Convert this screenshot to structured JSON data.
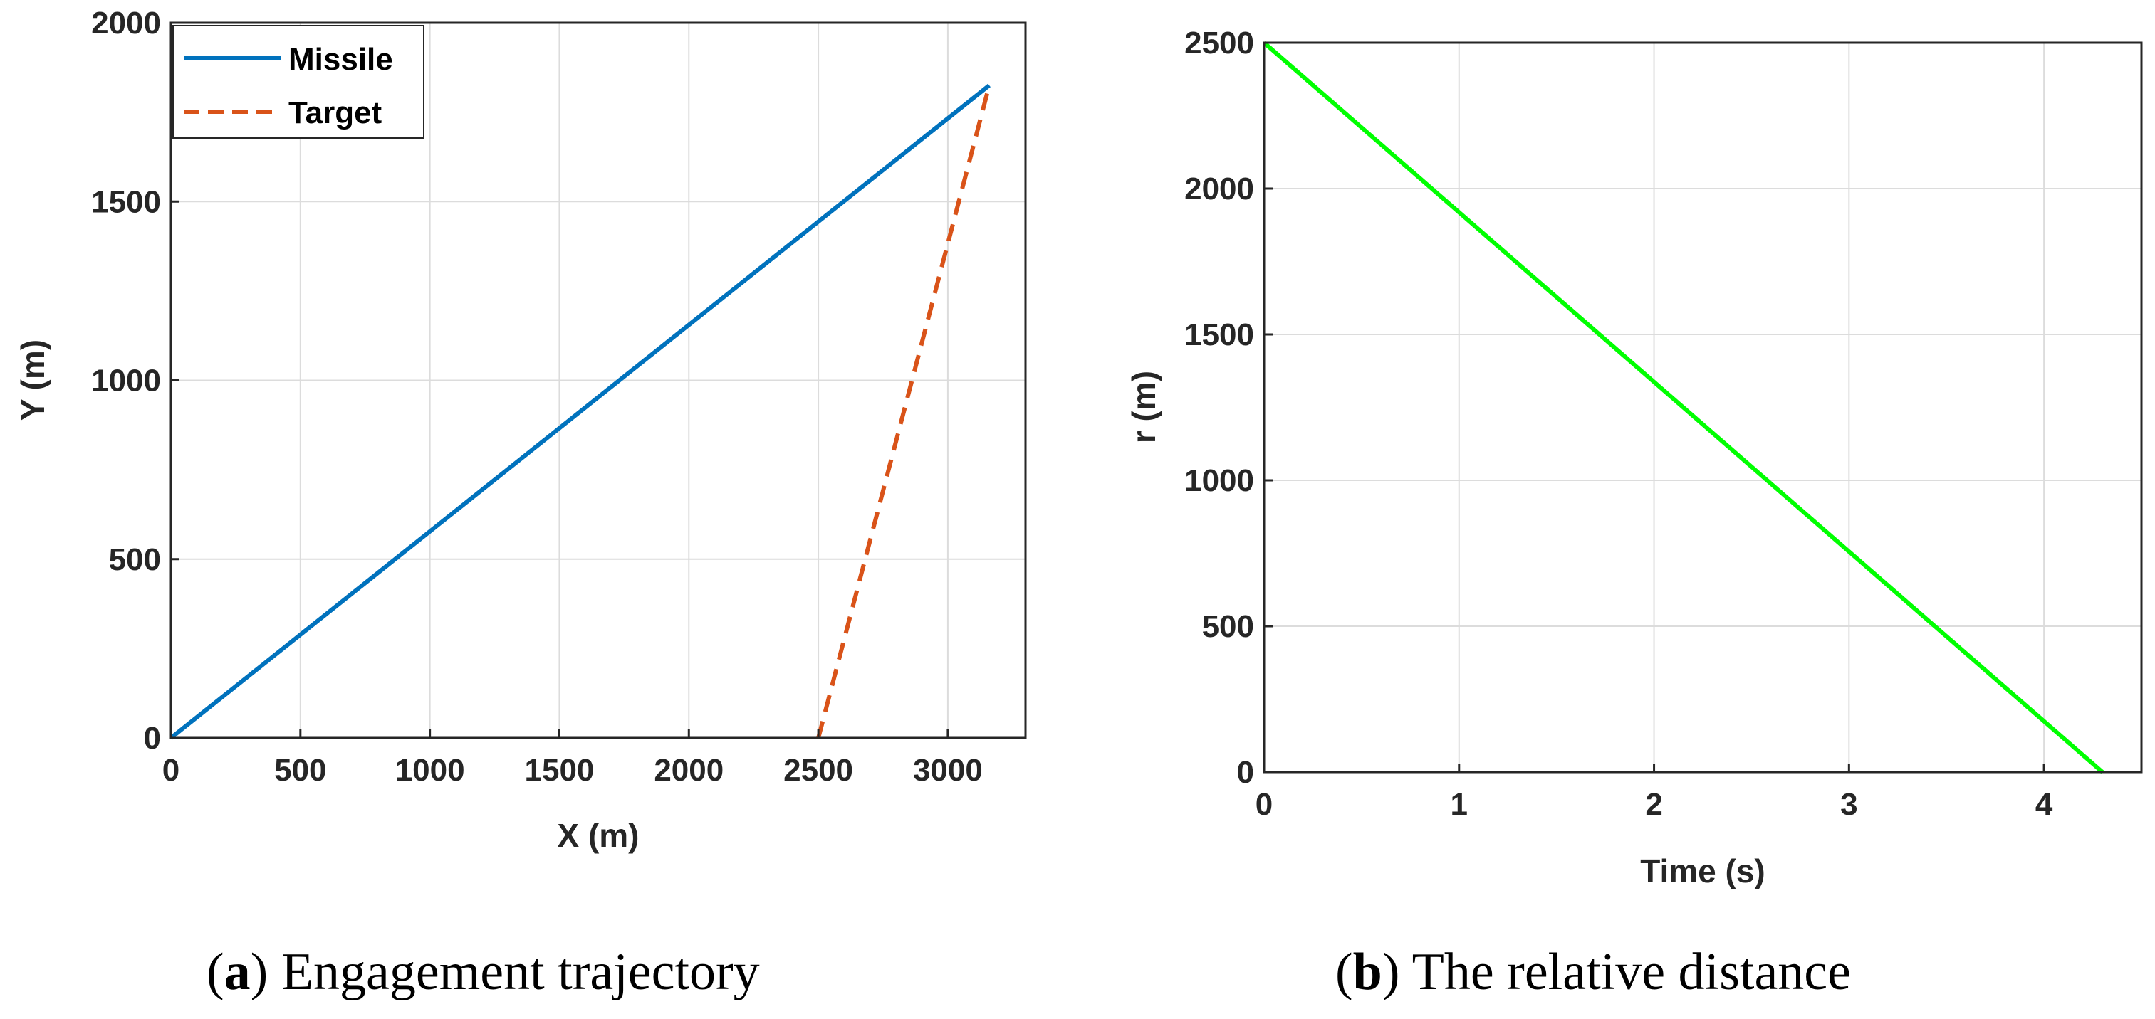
{
  "colors": {
    "missile": "#0072BD",
    "target": "#D95319",
    "distance": "#00FF00",
    "axis": "#262626",
    "grid": "#DCDCDC"
  },
  "chart_data": [
    {
      "type": "line",
      "id": "a",
      "caption_letter": "a",
      "caption_text": " Engagement trajectory",
      "title": "",
      "xlabel": "X (m)",
      "ylabel": "Y (m)",
      "xlim": [
        0,
        3300
      ],
      "ylim": [
        0,
        2000
      ],
      "xticks": [
        0,
        500,
        1000,
        1500,
        2000,
        2500,
        3000
      ],
      "yticks": [
        0,
        500,
        1000,
        1500,
        2000
      ],
      "grid": true,
      "legend_position": "top-left",
      "series": [
        {
          "name": "Missile",
          "style": "solid",
          "color": "#0072BD",
          "x": [
            0,
            3160
          ],
          "y": [
            0,
            1825
          ]
        },
        {
          "name": "Target",
          "style": "dashed",
          "color": "#D95319",
          "x": [
            2500,
            3160
          ],
          "y": [
            0,
            1825
          ]
        }
      ]
    },
    {
      "type": "line",
      "id": "b",
      "caption_letter": "b",
      "caption_text": " The relative distance",
      "title": "",
      "xlabel": "Time (s)",
      "ylabel": "r (m)",
      "xlim": [
        0,
        4.5
      ],
      "ylim": [
        0,
        2500
      ],
      "xticks": [
        0,
        1,
        2,
        3,
        4
      ],
      "yticks": [
        0,
        500,
        1000,
        1500,
        2000,
        2500
      ],
      "grid": true,
      "series": [
        {
          "name": "r",
          "style": "solid",
          "color": "#00FF00",
          "x": [
            0,
            4.3
          ],
          "y": [
            2500,
            0
          ]
        }
      ]
    }
  ]
}
